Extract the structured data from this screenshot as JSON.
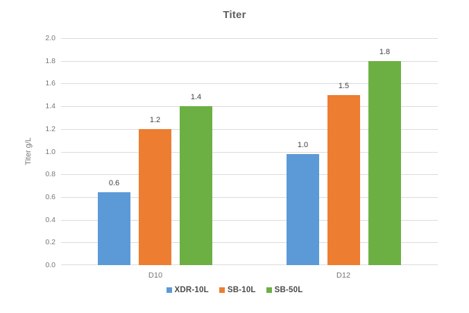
{
  "title": "Titer",
  "chart_data": {
    "type": "bar",
    "title": "Titer",
    "xlabel": "",
    "ylabel": "Titer g/L",
    "categories": [
      "D10",
      "D12"
    ],
    "series": [
      {
        "name": "XDR-10L",
        "color": "#5b9ad6",
        "values": [
          0.64,
          0.98
        ],
        "labels": [
          "0.6",
          "1.0"
        ]
      },
      {
        "name": "SB-10L",
        "color": "#ed7d31",
        "values": [
          1.2,
          1.5
        ],
        "labels": [
          "1.2",
          "1.5"
        ]
      },
      {
        "name": "SB-50L",
        "color": "#6cb043",
        "values": [
          1.4,
          1.8
        ],
        "labels": [
          "1.4",
          "1.8"
        ]
      }
    ],
    "ylim": [
      0,
      2
    ],
    "ytick_step": 0.2,
    "yticks": [
      "2.0",
      "1.8",
      "1.6",
      "1.4",
      "1.2",
      "1.0",
      "0.8",
      "0.6",
      "0.4",
      "0.2",
      "0.0"
    ],
    "grid": true,
    "legend_position": "bottom",
    "background": "#ffffff",
    "gridline_color": "#dbdbdb"
  }
}
